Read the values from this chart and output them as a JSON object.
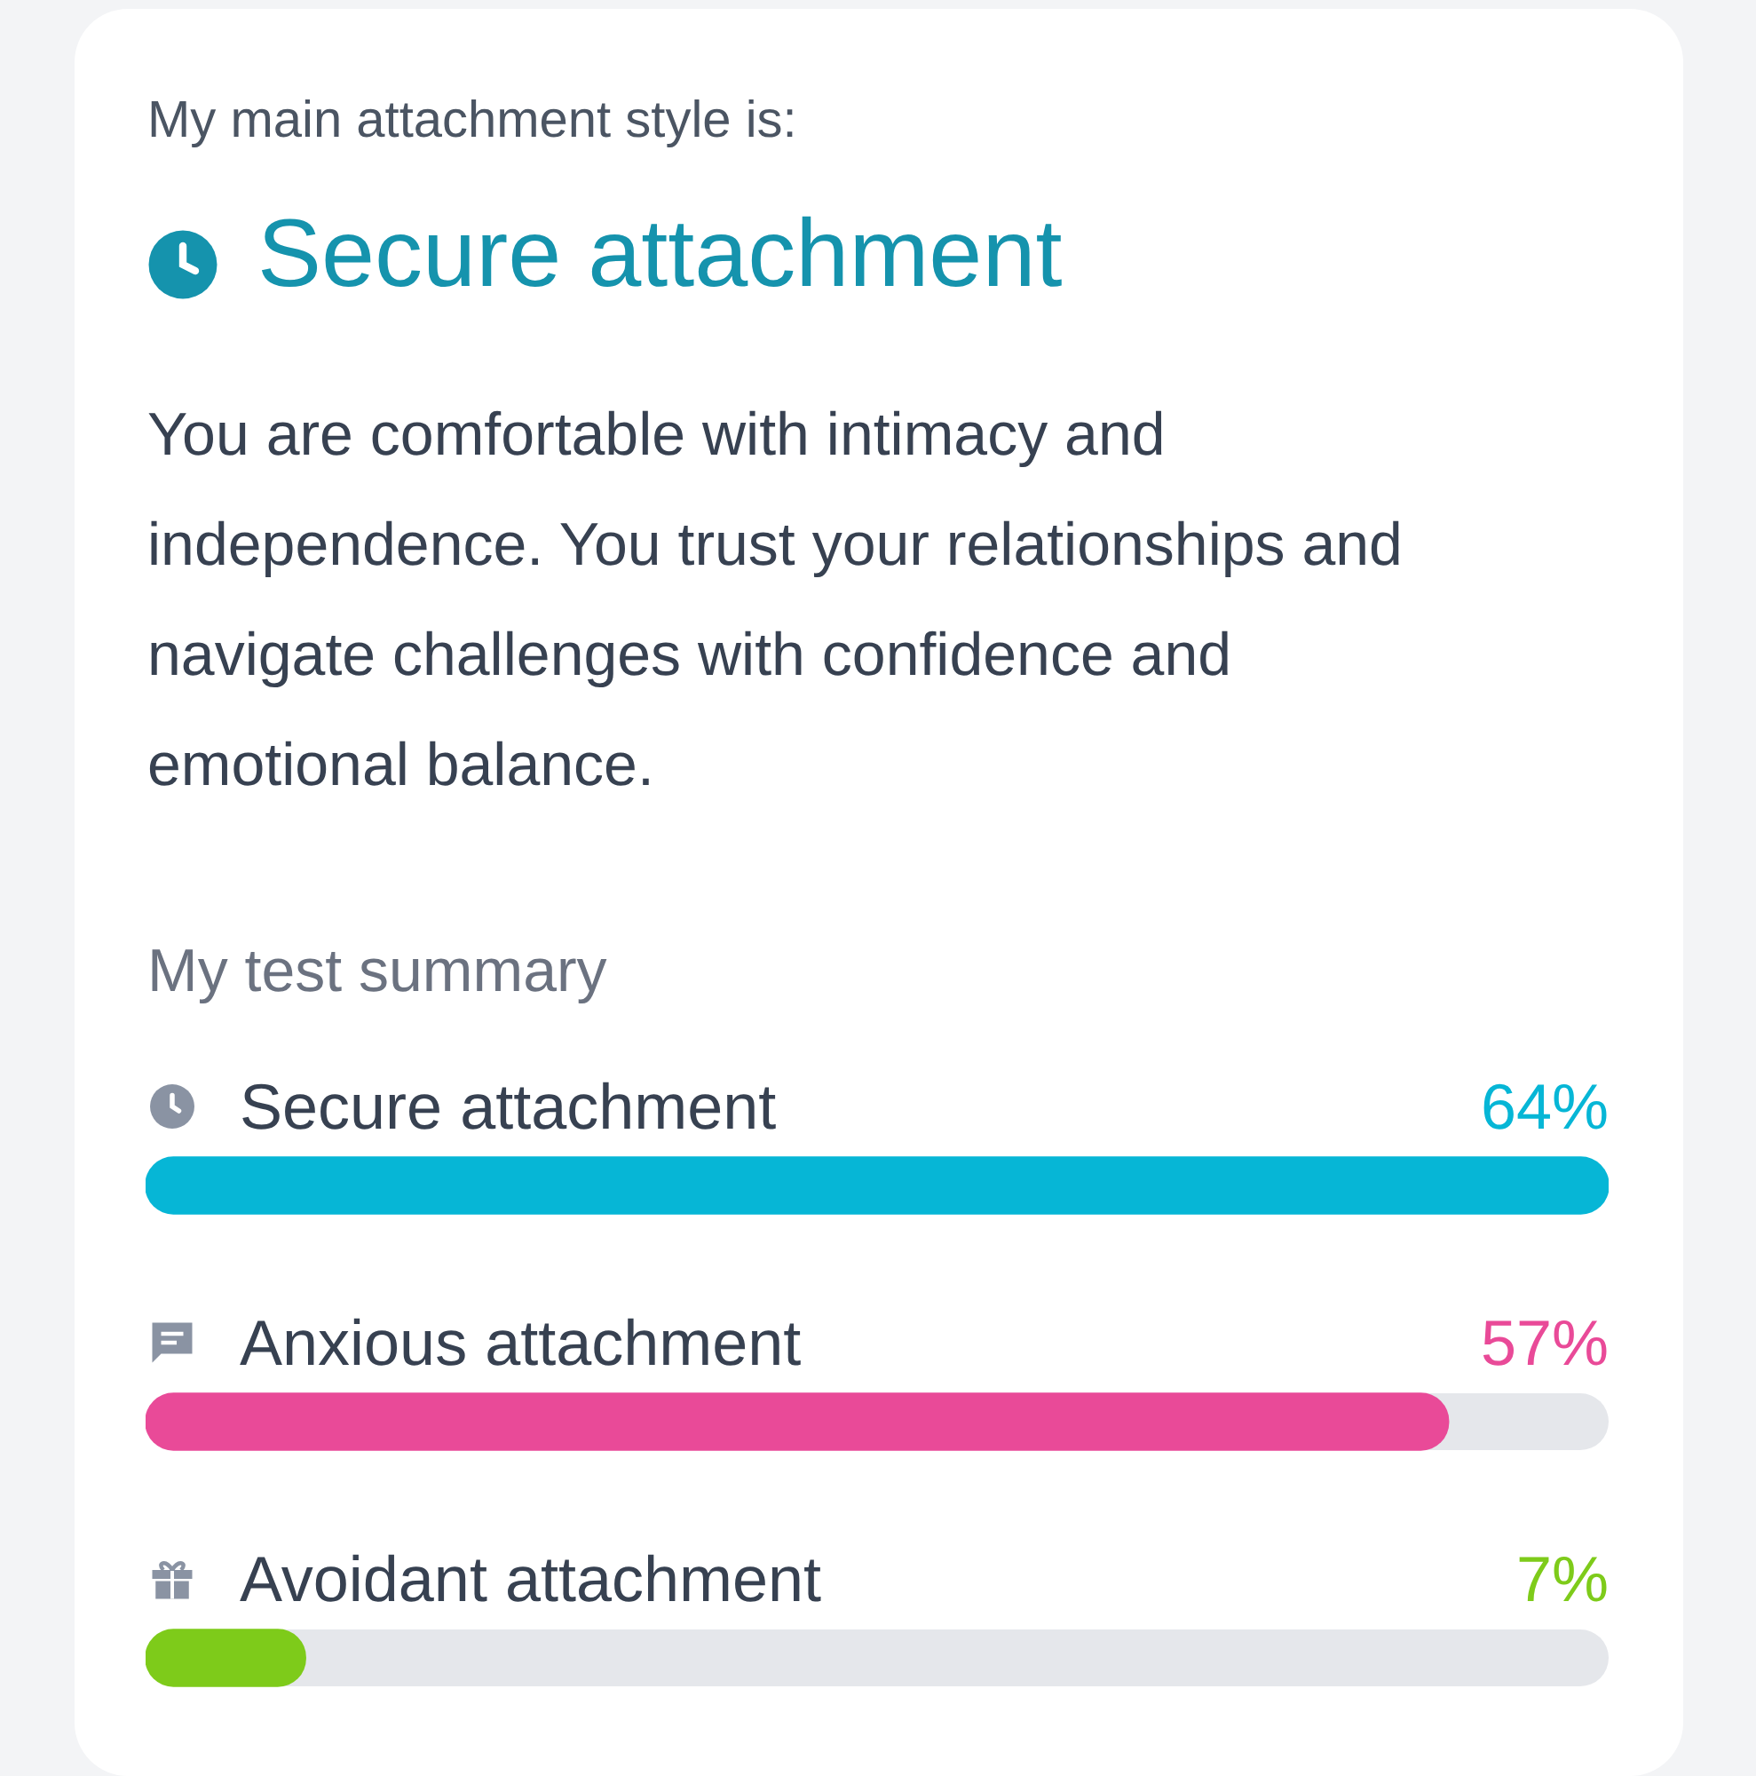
{
  "chart_data": {
    "type": "bar",
    "orientation": "horizontal",
    "title": "My main attachment style is:",
    "subtitle": "Secure attachment",
    "annotations": [
      "You are comfortable with intimacy and independence. You trust your relationships and navigate challenges with confidence and emotional balance.",
      "My test summary"
    ],
    "categories": [
      "Secure attachment",
      "Anxious attachment",
      "Avoidant attachment"
    ],
    "values": [
      64,
      57,
      7
    ],
    "colors": [
      "#06b6d6",
      "#e94a98",
      "#7ecb1a"
    ],
    "value_labels": [
      "64%",
      "57%",
      "7%"
    ]
  }
}
